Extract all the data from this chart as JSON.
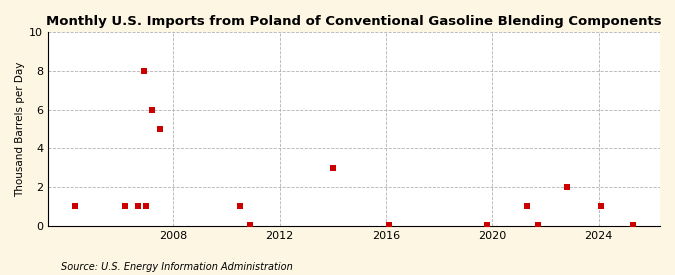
{
  "title": "Monthly U.S. Imports from Poland of Conventional Gasoline Blending Components",
  "ylabel": "Thousand Barrels per Day",
  "source": "Source: U.S. Energy Information Administration",
  "background_color": "#fdf6e3",
  "plot_bg_color": "#ffffff",
  "marker_color": "#cc0000",
  "ylim": [
    0,
    10
  ],
  "yticks": [
    0,
    2,
    4,
    6,
    8,
    10
  ],
  "xlim_start": 2003.3,
  "xlim_end": 2026.3,
  "xticks": [
    2008,
    2012,
    2016,
    2020,
    2024
  ],
  "data_points": [
    [
      2004.3,
      1
    ],
    [
      2006.2,
      1
    ],
    [
      2006.7,
      1
    ],
    [
      2007.0,
      1
    ],
    [
      2006.9,
      8
    ],
    [
      2007.2,
      6
    ],
    [
      2007.5,
      5
    ],
    [
      2010.5,
      1
    ],
    [
      2010.9,
      0.07
    ],
    [
      2014.0,
      3
    ],
    [
      2016.1,
      0.07
    ],
    [
      2019.8,
      0.07
    ],
    [
      2021.3,
      1
    ],
    [
      2021.7,
      0.07
    ],
    [
      2022.8,
      2
    ],
    [
      2024.1,
      1
    ],
    [
      2025.3,
      0.07
    ]
  ]
}
